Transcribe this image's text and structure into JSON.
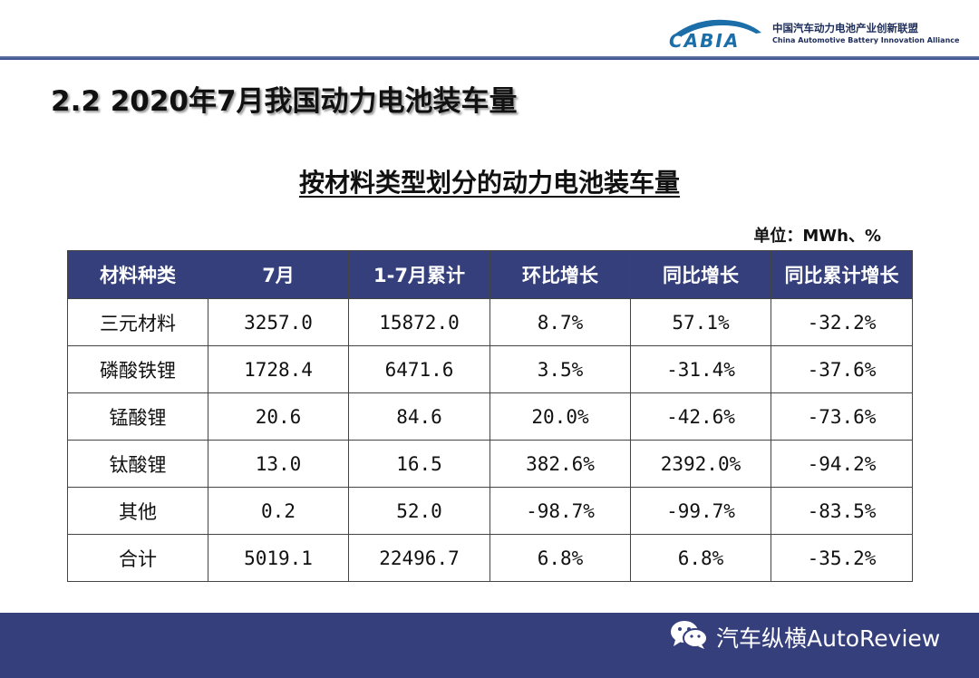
{
  "header": {
    "logo_text": "CABIA",
    "org_name_cn": "中国汽车动力电池产业创新联盟",
    "org_name_en": "China Automotive Battery Innovation Alliance"
  },
  "section_title": "2.2 2020年7月我国动力电池装车量",
  "table_title": "按材料类型划分的动力电池装车量",
  "unit": "单位：MWh、%",
  "table": {
    "headers": [
      "材料种类",
      "7月",
      "1-7月累计",
      "环比增长",
      "同比增长",
      "同比累计增长"
    ],
    "rows": [
      [
        "三元材料",
        "3257.0",
        "15872.0",
        "8.7%",
        "57.1%",
        "-32.2%"
      ],
      [
        "磷酸铁锂",
        "1728.4",
        "6471.6",
        "3.5%",
        "-31.4%",
        "-37.6%"
      ],
      [
        "锰酸锂",
        "20.6",
        "84.6",
        "20.0%",
        "-42.6%",
        "-73.6%"
      ],
      [
        "钛酸锂",
        "13.0",
        "16.5",
        "382.6%",
        "2392.0%",
        "-94.2%"
      ],
      [
        "其他",
        "0.2",
        "52.0",
        "-98.7%",
        "-99.7%",
        "-83.5%"
      ],
      [
        "合计",
        "5019.1",
        "22496.7",
        "6.8%",
        "6.8%",
        "-35.2%"
      ]
    ]
  },
  "footer": {
    "brand": "汽车纵横AutoReview",
    "icon": "wechat-icon"
  },
  "colors": {
    "header_bg": "#343f7c",
    "footer_bg": "#343f7c",
    "logo_blue": "#1b6ea8"
  }
}
